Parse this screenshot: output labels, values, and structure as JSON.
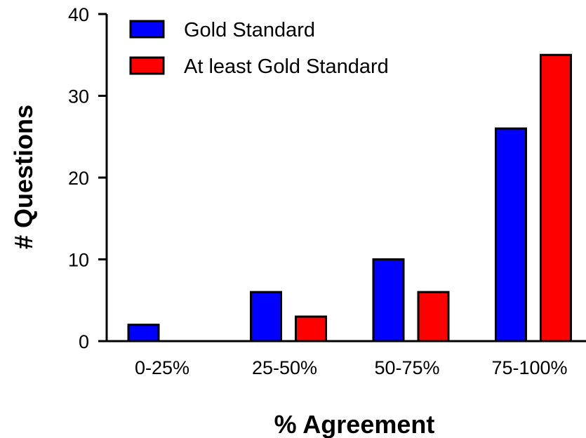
{
  "chart_data": {
    "type": "bar",
    "title": "",
    "xlabel": "% Agreement",
    "ylabel": "# Questions",
    "categories": [
      "0-25%",
      "25-50%",
      "50-75%",
      "75-100%"
    ],
    "series": [
      {
        "name": "Gold Standard",
        "color": "#0000ff",
        "values": [
          2,
          6,
          10,
          26
        ]
      },
      {
        "name": "At least Gold Standard",
        "color": "#ff0000",
        "values": [
          0,
          3,
          6,
          35
        ]
      }
    ],
    "ylim": [
      0,
      40
    ],
    "yticks": [
      "0",
      "10",
      "20",
      "30",
      "40"
    ],
    "grid": false,
    "legend": "top-left"
  }
}
